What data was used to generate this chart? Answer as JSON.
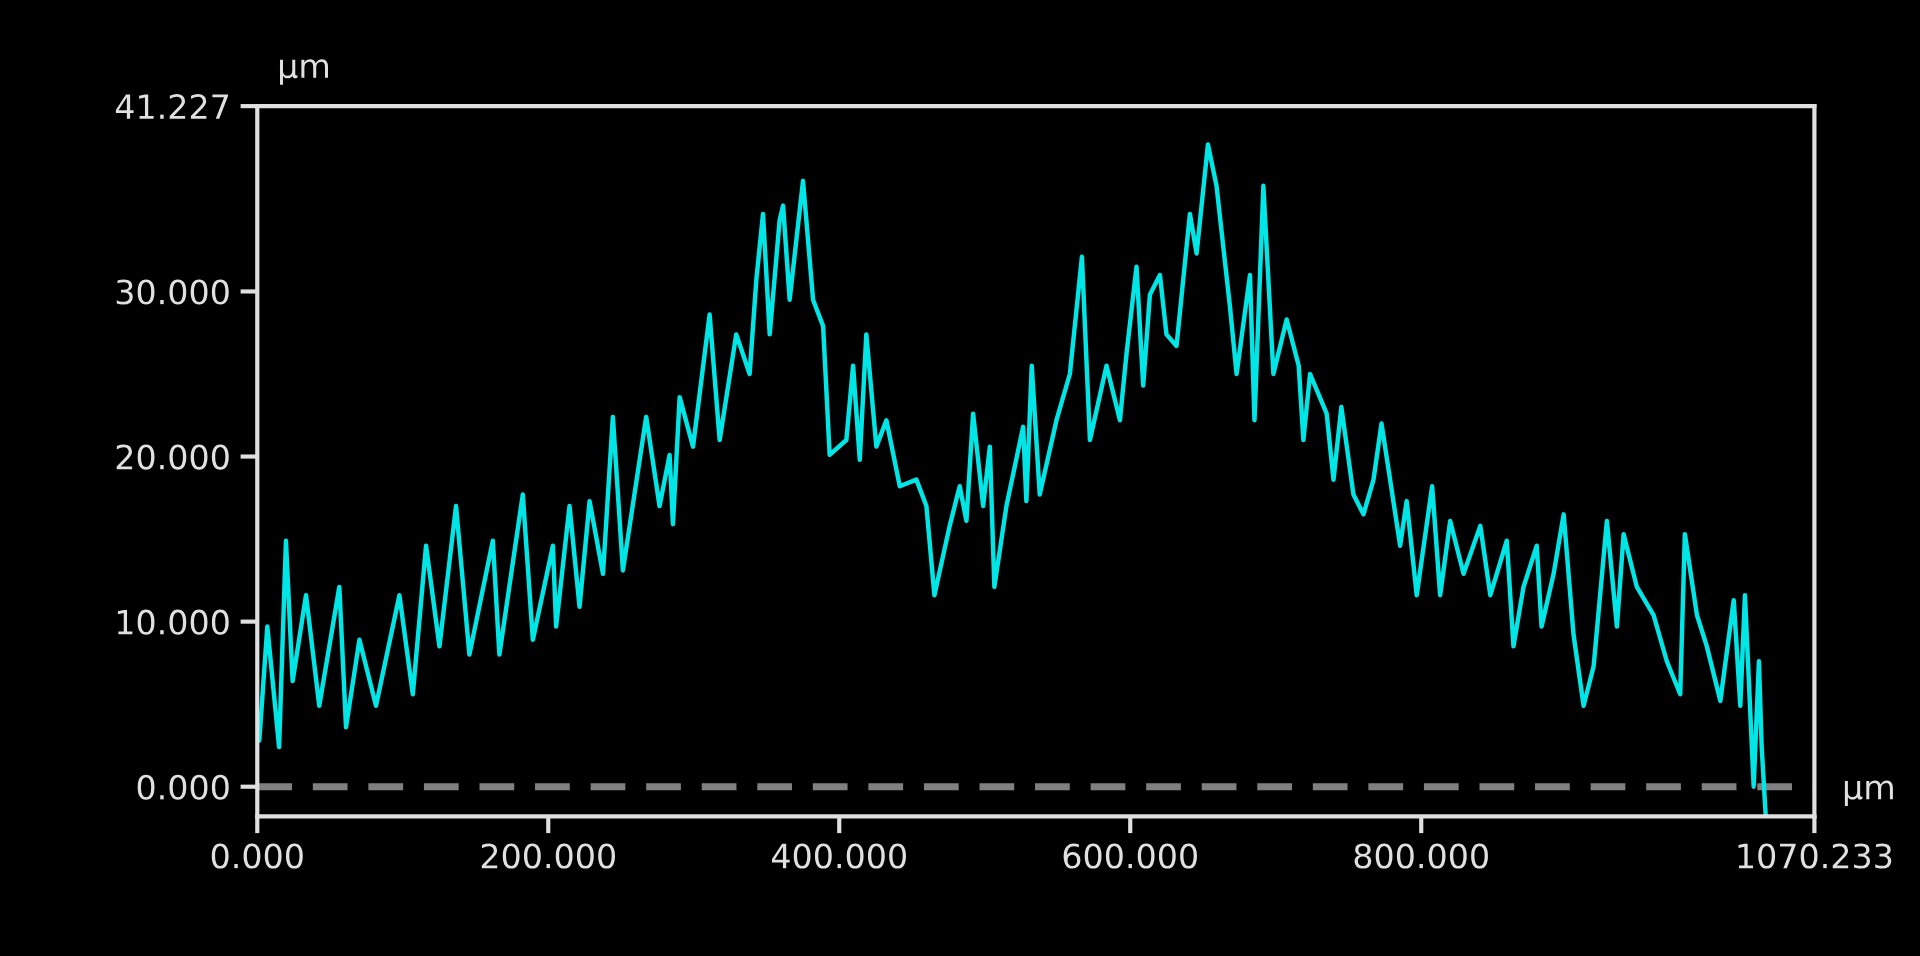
{
  "chart_data": {
    "type": "line",
    "xlabel": "µm",
    "ylabel": "µm",
    "xlim": [
      0,
      1070.233
    ],
    "ylim": [
      -1.8,
      41.227
    ],
    "xticks": [
      {
        "value": 0,
        "label": "0.000"
      },
      {
        "value": 200,
        "label": "200.000"
      },
      {
        "value": 400,
        "label": "400.000"
      },
      {
        "value": 600,
        "label": "600.000"
      },
      {
        "value": 800,
        "label": "800.000"
      },
      {
        "value": 1070.233,
        "label": "1070.233"
      }
    ],
    "yticks": [
      {
        "value": 0,
        "label": "0.000"
      },
      {
        "value": 10,
        "label": "10.000"
      },
      {
        "value": 20,
        "label": "20.000"
      },
      {
        "value": 30,
        "label": "30.000"
      },
      {
        "value": 41.227,
        "label": "41.227"
      }
    ],
    "grid": false,
    "legend": false,
    "marker": "none",
    "line_style": "solid",
    "ref_lines": [
      {
        "axis": "y",
        "value": 0,
        "color": "#808080",
        "line_style": "dashed"
      }
    ],
    "series": [
      {
        "color": "#00e5e5",
        "x": [
          1.4,
          6.9,
          15,
          19.7,
          24.3,
          33.5,
          42.6,
          56.4,
          61,
          70.2,
          81.6,
          97.7,
          106.9,
          116,
          125.2,
          136.6,
          145.8,
          161.9,
          166.4,
          182.5,
          189.4,
          203.2,
          205.4,
          214.6,
          221.5,
          228.4,
          237.6,
          244.4,
          251.3,
          267.3,
          276.5,
          283.4,
          285.7,
          290.3,
          299.5,
          310.9,
          317.8,
          329.2,
          338.4,
          343,
          347.6,
          352.2,
          359,
          361.4,
          365.9,
          375.1,
          382,
          388.9,
          393.4,
          404.9,
          409.5,
          414.1,
          418.6,
          425.5,
          432.4,
          441.6,
          453,
          459.9,
          465.4,
          475.9,
          482.8,
          487.4,
          492,
          498.9,
          503.5,
          506.6,
          514.9,
          526.4,
          528.6,
          532.3,
          537.8,
          549.3,
          558.5,
          566.8,
          572.3,
          583.7,
          592.9,
          597.4,
          604.3,
          608.9,
          613.5,
          620.4,
          624.9,
          631.8,
          641,
          645.6,
          653.4,
          659.3,
          668.5,
          673.1,
          682.3,
          685.4,
          691.5,
          698.4,
          707.5,
          715.8,
          719.0,
          723.6,
          735,
          739.7,
          745.1,
          753.4,
          760.3,
          767.2,
          772.7,
          778.6,
          785.5,
          790,
          796.9,
          807.5,
          813,
          819.9,
          829.1,
          840.6,
          847.5,
          858.8,
          863.4,
          870.3,
          879.4,
          882.7,
          891,
          897.9,
          904.7,
          911.6,
          918.5,
          927.6,
          934.5,
          939.1,
          948.2,
          959.7,
          968.8,
          978,
          981.2,
          989.5,
          996.3,
          1005.6,
          1014.8,
          1019.3,
          1022.5,
          1028.5,
          1032.1,
          1034,
          1036.8
        ],
        "values": [
          2.8,
          9.7,
          2.4,
          14.9,
          6.4,
          11.6,
          4.9,
          12.1,
          3.6,
          8.9,
          4.9,
          11.6,
          5.6,
          14.6,
          8.5,
          17.0,
          8.0,
          14.9,
          8.0,
          17.7,
          8.9,
          14.6,
          9.7,
          17.0,
          10.9,
          17.3,
          12.9,
          22.4,
          13.1,
          22.4,
          17.0,
          20.1,
          15.9,
          23.6,
          20.6,
          28.6,
          21.0,
          27.4,
          25.0,
          30.7,
          34.7,
          27.4,
          34.3,
          35.2,
          29.5,
          36.7,
          29.5,
          27.9,
          20.1,
          21.0,
          25.5,
          19.8,
          27.4,
          20.6,
          22.2,
          18.2,
          18.6,
          17.0,
          11.6,
          15.8,
          18.2,
          16.1,
          22.6,
          17.0,
          20.6,
          12.1,
          17.0,
          21.8,
          17.3,
          25.5,
          17.7,
          22.2,
          25.0,
          32.1,
          21.0,
          25.5,
          22.2,
          26.2,
          31.5,
          24.3,
          29.8,
          31.0,
          27.4,
          26.7,
          34.7,
          32.3,
          38.9,
          36.4,
          29.1,
          25.0,
          31.0,
          22.2,
          36.4,
          25.0,
          28.3,
          25.5,
          21.0,
          25.0,
          22.6,
          18.6,
          23.0,
          17.7,
          16.5,
          18.6,
          22.0,
          18.6,
          14.6,
          17.3,
          11.6,
          18.2,
          11.6,
          16.1,
          12.9,
          15.8,
          11.6,
          14.9,
          8.5,
          12.1,
          14.6,
          9.7,
          12.9,
          16.5,
          9.2,
          4.9,
          7.3,
          16.1,
          9.7,
          15.3,
          12.1,
          10.4,
          7.6,
          5.6,
          15.3,
          10.4,
          8.5,
          5.2,
          11.3,
          4.9,
          11.6,
          0,
          7.6,
          2.4,
          -1.8
        ]
      }
    ]
  }
}
